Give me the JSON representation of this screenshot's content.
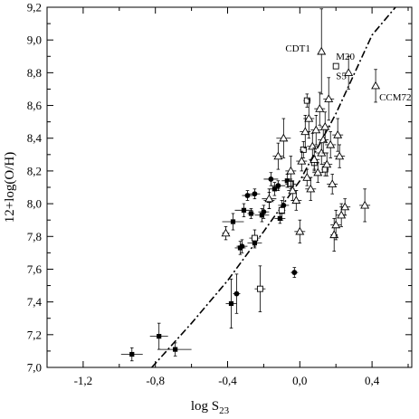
{
  "chart_data": {
    "type": "scatter",
    "title": "",
    "xlabel": "log S",
    "xlabel_sub": "23",
    "ylabel": "12+log(O/H)",
    "xlim": [
      -1.4,
      0.62
    ],
    "ylim": [
      7.0,
      9.2
    ],
    "grid": false,
    "legend": "none",
    "xticks": [
      {
        "value": -1.2,
        "label": "-1,2"
      },
      {
        "value": -0.8,
        "label": "-0,8"
      },
      {
        "value": -0.4,
        "label": "-0,4"
      },
      {
        "value": 0.0,
        "label": "0,0"
      },
      {
        "value": 0.4,
        "label": "0,4"
      }
    ],
    "yticks": [
      {
        "value": 7.0,
        "label": "7,0"
      },
      {
        "value": 7.2,
        "label": "7,2"
      },
      {
        "value": 7.4,
        "label": "7,4"
      },
      {
        "value": 7.6,
        "label": "7,6"
      },
      {
        "value": 7.8,
        "label": "7,8"
      },
      {
        "value": 8.0,
        "label": "8,0"
      },
      {
        "value": 8.2,
        "label": "8,2"
      },
      {
        "value": 8.4,
        "label": "8,4"
      },
      {
        "value": 8.6,
        "label": "8,6"
      },
      {
        "value": 8.8,
        "label": "8,8"
      },
      {
        "value": 9.0,
        "label": "9,0"
      },
      {
        "value": 9.2,
        "label": "9,2"
      }
    ],
    "fit_curve": {
      "style": "dash-dot",
      "points": [
        [
          -0.82,
          7.0
        ],
        [
          -0.6,
          7.27
        ],
        [
          -0.4,
          7.53
        ],
        [
          -0.2,
          7.83
        ],
        [
          0.0,
          8.14
        ],
        [
          0.2,
          8.55
        ],
        [
          0.4,
          9.03
        ],
        [
          0.53,
          9.2
        ]
      ]
    },
    "series": [
      {
        "marker": "filled-square",
        "points": [
          {
            "x": -0.93,
            "y": 7.08,
            "xerr": 0.06,
            "yerr": 0.04
          },
          {
            "x": -0.78,
            "y": 7.19,
            "xerr": 0.05,
            "yerr": 0.08
          },
          {
            "x": -0.69,
            "y": 7.11,
            "xerr": 0.09,
            "yerr": 0.04
          },
          {
            "x": -0.38,
            "y": 7.39,
            "xerr": 0.03,
            "yerr": 0.15
          },
          {
            "x": -0.37,
            "y": 7.89,
            "xerr": 0.06,
            "yerr": 0.05
          },
          {
            "x": -0.33,
            "y": 7.73,
            "xerr": 0.03,
            "yerr": 0.04
          },
          {
            "x": -0.31,
            "y": 7.96,
            "xerr": 0.05,
            "yerr": 0.04
          },
          {
            "x": -0.27,
            "y": 7.94,
            "xerr": 0.02,
            "yerr": 0.03
          },
          {
            "x": -0.25,
            "y": 7.76,
            "xerr": 0.04,
            "yerr": 0.03
          },
          {
            "x": -0.21,
            "y": 7.93,
            "xerr": 0.04,
            "yerr": 0.04
          },
          {
            "x": -0.17,
            "y": 8.02,
            "xerr": 0.03,
            "yerr": 0.05
          },
          {
            "x": -0.14,
            "y": 8.09,
            "xerr": 0.03,
            "yerr": 0.04
          },
          {
            "x": -0.11,
            "y": 7.91,
            "xerr": 0.03,
            "yerr": 0.03
          },
          {
            "x": -0.07,
            "y": 8.14,
            "xerr": 0.03,
            "yerr": 0.04
          }
        ]
      },
      {
        "marker": "filled-circle",
        "points": [
          {
            "x": -0.35,
            "y": 7.45,
            "xerr": 0.02,
            "yerr": 0.12
          },
          {
            "x": -0.32,
            "y": 7.74,
            "xerr": 0.03,
            "yerr": 0.04
          },
          {
            "x": -0.29,
            "y": 8.05,
            "xerr": 0.03,
            "yerr": 0.03
          },
          {
            "x": -0.25,
            "y": 8.06,
            "xerr": 0.03,
            "yerr": 0.03
          },
          {
            "x": -0.2,
            "y": 7.95,
            "xerr": 0.03,
            "yerr": 0.04
          },
          {
            "x": -0.16,
            "y": 8.15,
            "xerr": 0.04,
            "yerr": 0.04
          },
          {
            "x": -0.12,
            "y": 8.11,
            "xerr": 0.04,
            "yerr": 0.03
          },
          {
            "x": -0.09,
            "y": 7.99,
            "xerr": 0.03,
            "yerr": 0.05
          },
          {
            "x": -0.03,
            "y": 7.58,
            "xerr": 0.02,
            "yerr": 0.03
          }
        ]
      },
      {
        "marker": "open-square",
        "points": [
          {
            "x": -0.25,
            "y": 7.79,
            "xerr": 0.03,
            "yerr": 0.05
          },
          {
            "x": -0.22,
            "y": 7.48,
            "xerr": 0.03,
            "yerr": 0.14
          },
          {
            "x": -0.1,
            "y": 7.96,
            "xerr": 0.02,
            "yerr": 0.06
          },
          {
            "x": -0.05,
            "y": 8.12,
            "xerr": 0.03,
            "yerr": 0.03
          },
          {
            "x": 0.02,
            "y": 8.33,
            "xerr": 0.02,
            "yerr": 0.05
          },
          {
            "x": 0.04,
            "y": 8.63,
            "xerr": 0.02,
            "yerr": 0.04
          },
          {
            "x": 0.08,
            "y": 8.25,
            "xerr": 0.02,
            "yerr": 0.04
          },
          {
            "x": 0.14,
            "y": 8.21,
            "xerr": 0.02,
            "yerr": 0.04
          },
          {
            "x": 0.2,
            "y": 8.84,
            "xerr": 0.0,
            "yerr": 0.0
          }
        ]
      },
      {
        "marker": "open-triangle",
        "points": [
          {
            "x": -0.41,
            "y": 7.82,
            "xerr": 0.02,
            "yerr": 0.04
          },
          {
            "x": -0.17,
            "y": 8.03,
            "xerr": 0.04,
            "yerr": 0.06
          },
          {
            "x": -0.12,
            "y": 8.29,
            "xerr": 0.03,
            "yerr": 0.08
          },
          {
            "x": -0.09,
            "y": 8.4,
            "xerr": 0.04,
            "yerr": 0.12
          },
          {
            "x": -0.05,
            "y": 8.2,
            "xerr": 0.03,
            "yerr": 0.09
          },
          {
            "x": -0.04,
            "y": 8.08,
            "xerr": 0.03,
            "yerr": 0.06
          },
          {
            "x": -0.02,
            "y": 8.02,
            "xerr": 0.03,
            "yerr": 0.06
          },
          {
            "x": 0.0,
            "y": 7.83,
            "xerr": 0.03,
            "yerr": 0.07
          },
          {
            "x": 0.01,
            "y": 8.26,
            "xerr": 0.03,
            "yerr": 0.06
          },
          {
            "x": 0.03,
            "y": 8.44,
            "xerr": 0.03,
            "yerr": 0.1
          },
          {
            "x": 0.04,
            "y": 8.16,
            "xerr": 0.03,
            "yerr": 0.05
          },
          {
            "x": 0.05,
            "y": 8.52,
            "xerr": 0.03,
            "yerr": 0.12
          },
          {
            "x": 0.06,
            "y": 8.09,
            "xerr": 0.03,
            "yerr": 0.07
          },
          {
            "x": 0.07,
            "y": 8.35,
            "xerr": 0.03,
            "yerr": 0.08
          },
          {
            "x": 0.08,
            "y": 8.27,
            "xerr": 0.03,
            "yerr": 0.07
          },
          {
            "x": 0.09,
            "y": 8.45,
            "xerr": 0.03,
            "yerr": 0.09
          },
          {
            "x": 0.1,
            "y": 8.19,
            "xerr": 0.03,
            "yerr": 0.06
          },
          {
            "x": 0.11,
            "y": 8.58,
            "xerr": 0.03,
            "yerr": 0.1
          },
          {
            "x": 0.12,
            "y": 8.93,
            "xerr": 0.0,
            "yerr": 0.26
          },
          {
            "x": 0.12,
            "y": 8.31,
            "xerr": 0.03,
            "yerr": 0.07
          },
          {
            "x": 0.13,
            "y": 8.39,
            "xerr": 0.03,
            "yerr": 0.08
          },
          {
            "x": 0.14,
            "y": 8.47,
            "xerr": 0.03,
            "yerr": 0.09
          },
          {
            "x": 0.15,
            "y": 8.24,
            "xerr": 0.03,
            "yerr": 0.07
          },
          {
            "x": 0.16,
            "y": 8.64,
            "xerr": 0.03,
            "yerr": 0.13
          },
          {
            "x": 0.17,
            "y": 8.36,
            "xerr": 0.03,
            "yerr": 0.08
          },
          {
            "x": 0.18,
            "y": 8.12,
            "xerr": 0.03,
            "yerr": 0.06
          },
          {
            "x": 0.19,
            "y": 7.81,
            "xerr": 0.02,
            "yerr": 0.1
          },
          {
            "x": 0.2,
            "y": 7.87,
            "xerr": 0.03,
            "yerr": 0.09
          },
          {
            "x": 0.21,
            "y": 8.42,
            "xerr": 0.03,
            "yerr": 0.1
          },
          {
            "x": 0.22,
            "y": 8.29,
            "xerr": 0.03,
            "yerr": 0.07
          },
          {
            "x": 0.23,
            "y": 7.93,
            "xerr": 0.03,
            "yerr": 0.07
          },
          {
            "x": 0.25,
            "y": 7.98,
            "xerr": 0.03,
            "yerr": 0.05
          },
          {
            "x": 0.27,
            "y": 8.8,
            "xerr": 0.0,
            "yerr": 0.1
          },
          {
            "x": 0.36,
            "y": 7.99,
            "xerr": 0.03,
            "yerr": 0.1
          },
          {
            "x": 0.42,
            "y": 8.72,
            "xerr": 0.0,
            "yerr": 0.1
          }
        ]
      }
    ],
    "annotations": [
      {
        "text": "CDT1",
        "x": -0.08,
        "y": 8.93
      },
      {
        "text": "M20",
        "x": 0.2,
        "y": 8.88
      },
      {
        "text": "S5",
        "x": 0.2,
        "y": 8.76
      },
      {
        "text": "CCM72",
        "x": 0.44,
        "y": 8.63
      }
    ]
  }
}
